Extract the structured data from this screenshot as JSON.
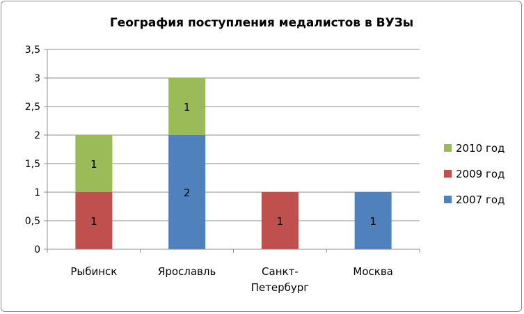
{
  "chart_data": {
    "type": "bar",
    "stacked": true,
    "title": "География поступления медалистов в ВУЗы",
    "xlabel": "",
    "ylabel": "",
    "categories": [
      "Рыбинск",
      "Ярославль",
      "Санкт-Петербург",
      "Москва"
    ],
    "category_lines": [
      [
        "Рыбинск"
      ],
      [
        "Ярославль"
      ],
      [
        "Санкт-",
        "Петербург"
      ],
      [
        "Москва"
      ]
    ],
    "series": [
      {
        "name": "2007 год",
        "color": "#4f81bd",
        "values": [
          0,
          2,
          0,
          1
        ]
      },
      {
        "name": "2009 год",
        "color": "#c0504d",
        "values": [
          1,
          0,
          1,
          0
        ]
      },
      {
        "name": "2010 год",
        "color": "#9bbb59",
        "values": [
          1,
          1,
          0,
          0
        ]
      }
    ],
    "ylim": [
      0,
      3.5
    ],
    "yticks": [
      0,
      0.5,
      1,
      1.5,
      2,
      2.5,
      3,
      3.5
    ],
    "ytick_labels": [
      "0",
      "0,5",
      "1",
      "1,5",
      "2",
      "2,5",
      "3",
      "3,5"
    ],
    "grid": true,
    "legend_position": "right",
    "legend_order": [
      "2010 год",
      "2009 год",
      "2007 год"
    ],
    "data_labels": true
  }
}
